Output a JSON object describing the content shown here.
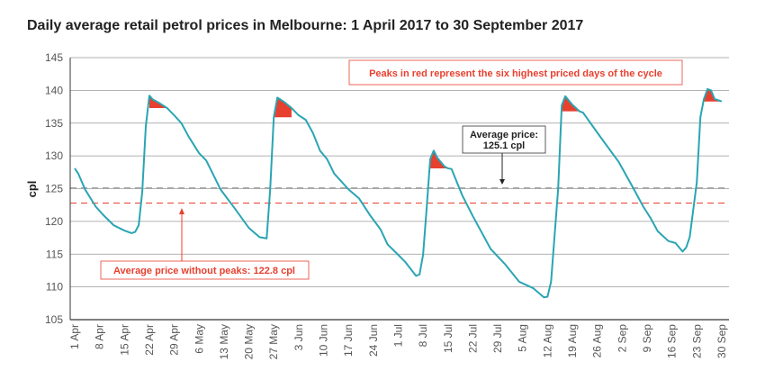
{
  "chart_data": {
    "type": "line",
    "title": "Daily average retail petrol prices in Melbourne: 1 April 2017 to 30 September 2017",
    "ylabel": "cpl",
    "xlabel": "",
    "ylim": [
      105,
      145
    ],
    "yticks": [
      105,
      110,
      115,
      120,
      125,
      130,
      135,
      140,
      145
    ],
    "grid": "horizontal",
    "xlim": [
      "2017-04-01",
      "2017-09-30"
    ],
    "xtick_labels": [
      "1 Apr",
      "8 Apr",
      "15 Apr",
      "22 Apr",
      "29 Apr",
      "6 May",
      "13 May",
      "20 May",
      "27 May",
      "3 Jun",
      "10 Jun",
      "17 Jun",
      "24 Jun",
      "1 Jul",
      "8 Jul",
      "15 Jul",
      "22 Jul",
      "29 Jul",
      "5 Aug",
      "12 Aug",
      "19 Aug",
      "26 Aug",
      "2 Sep",
      "9 Sep",
      "16 Sep",
      "23 Sep",
      "30 Sep"
    ],
    "series": [
      {
        "color": "#2aa5b3",
        "points": [
          [
            "2017-04-01",
            128.1
          ],
          [
            "2017-04-02",
            127.3
          ],
          [
            "2017-04-04",
            124.8
          ],
          [
            "2017-04-07",
            122.2
          ],
          [
            "2017-04-09",
            121.0
          ],
          [
            "2017-04-12",
            119.4
          ],
          [
            "2017-04-15",
            118.6
          ],
          [
            "2017-04-17",
            118.2
          ],
          [
            "2017-04-18",
            118.4
          ],
          [
            "2017-04-19",
            119.4
          ],
          [
            "2017-04-20",
            124.5
          ],
          [
            "2017-04-21",
            134.5
          ],
          [
            "2017-04-22",
            139.2
          ],
          [
            "2017-04-23",
            138.6
          ],
          [
            "2017-04-25",
            138.0
          ],
          [
            "2017-04-27",
            137.3
          ],
          [
            "2017-04-29",
            136.2
          ],
          [
            "2017-05-01",
            135.0
          ],
          [
            "2017-05-03",
            133.0
          ],
          [
            "2017-05-06",
            130.4
          ],
          [
            "2017-05-08",
            129.3
          ],
          [
            "2017-05-12",
            124.9
          ],
          [
            "2017-05-16",
            122.0
          ],
          [
            "2017-05-20",
            119.0
          ],
          [
            "2017-05-23",
            117.6
          ],
          [
            "2017-05-25",
            117.4
          ],
          [
            "2017-05-26",
            125.0
          ],
          [
            "2017-05-27",
            135.9
          ],
          [
            "2017-05-28",
            138.9
          ],
          [
            "2017-05-30",
            138.2
          ],
          [
            "2017-06-01",
            137.3
          ],
          [
            "2017-06-03",
            136.2
          ],
          [
            "2017-06-05",
            135.5
          ],
          [
            "2017-06-07",
            133.5
          ],
          [
            "2017-06-09",
            130.8
          ],
          [
            "2017-06-11",
            129.5
          ],
          [
            "2017-06-13",
            127.3
          ],
          [
            "2017-06-17",
            124.9
          ],
          [
            "2017-06-20",
            123.5
          ],
          [
            "2017-06-23",
            121.0
          ],
          [
            "2017-06-26",
            118.8
          ],
          [
            "2017-06-28",
            116.5
          ],
          [
            "2017-07-01",
            114.9
          ],
          [
            "2017-07-03",
            113.8
          ],
          [
            "2017-07-06",
            111.7
          ],
          [
            "2017-07-07",
            111.9
          ],
          [
            "2017-07-08",
            114.9
          ],
          [
            "2017-07-09",
            122.0
          ],
          [
            "2017-07-10",
            129.5
          ],
          [
            "2017-07-11",
            130.8
          ],
          [
            "2017-07-12",
            129.7
          ],
          [
            "2017-07-14",
            128.4
          ],
          [
            "2017-07-15",
            128.1
          ],
          [
            "2017-07-16",
            128.0
          ],
          [
            "2017-07-19",
            124.0
          ],
          [
            "2017-07-22",
            120.8
          ],
          [
            "2017-07-27",
            115.8
          ],
          [
            "2017-07-31",
            113.5
          ],
          [
            "2017-08-04",
            110.8
          ],
          [
            "2017-08-08",
            109.8
          ],
          [
            "2017-08-11",
            108.4
          ],
          [
            "2017-08-12",
            108.5
          ],
          [
            "2017-08-13",
            110.8
          ],
          [
            "2017-08-15",
            125.0
          ],
          [
            "2017-08-16",
            137.7
          ],
          [
            "2017-08-17",
            139.1
          ],
          [
            "2017-08-19",
            137.8
          ],
          [
            "2017-08-21",
            136.8
          ],
          [
            "2017-08-22",
            136.6
          ],
          [
            "2017-08-27",
            132.8
          ],
          [
            "2017-09-01",
            129.1
          ],
          [
            "2017-09-05",
            125.2
          ],
          [
            "2017-09-08",
            122.2
          ],
          [
            "2017-09-10",
            120.5
          ],
          [
            "2017-09-12",
            118.5
          ],
          [
            "2017-09-15",
            117.0
          ],
          [
            "2017-09-17",
            116.7
          ],
          [
            "2017-09-19",
            115.4
          ],
          [
            "2017-09-20",
            116.0
          ],
          [
            "2017-09-21",
            117.6
          ],
          [
            "2017-09-23",
            126.0
          ],
          [
            "2017-09-24",
            135.9
          ],
          [
            "2017-09-25",
            138.7
          ],
          [
            "2017-09-26",
            140.2
          ],
          [
            "2017-09-27",
            140.0
          ],
          [
            "2017-09-28",
            138.7
          ],
          [
            "2017-09-30",
            138.3
          ]
        ]
      }
    ],
    "peaks": {
      "color": "#e8402f",
      "ranges": [
        [
          "2017-04-22",
          "2017-04-27"
        ],
        [
          "2017-05-27",
          "2017-06-01"
        ],
        [
          "2017-07-10",
          "2017-07-15"
        ],
        [
          "2017-08-16",
          "2017-08-21"
        ],
        [
          "2017-09-25",
          "2017-09-30"
        ]
      ]
    },
    "reference_lines": [
      {
        "value": 125.1,
        "color": "#888888",
        "label_line1": "Average price:",
        "label_line2": "125.1 cpl"
      },
      {
        "value": 122.8,
        "color": "#e8402f",
        "label": "Average price without peaks: 122.8 cpl"
      }
    ],
    "annotation": {
      "text": "Peaks in red represent the six highest priced days of the cycle",
      "color": "#e8402f"
    }
  }
}
